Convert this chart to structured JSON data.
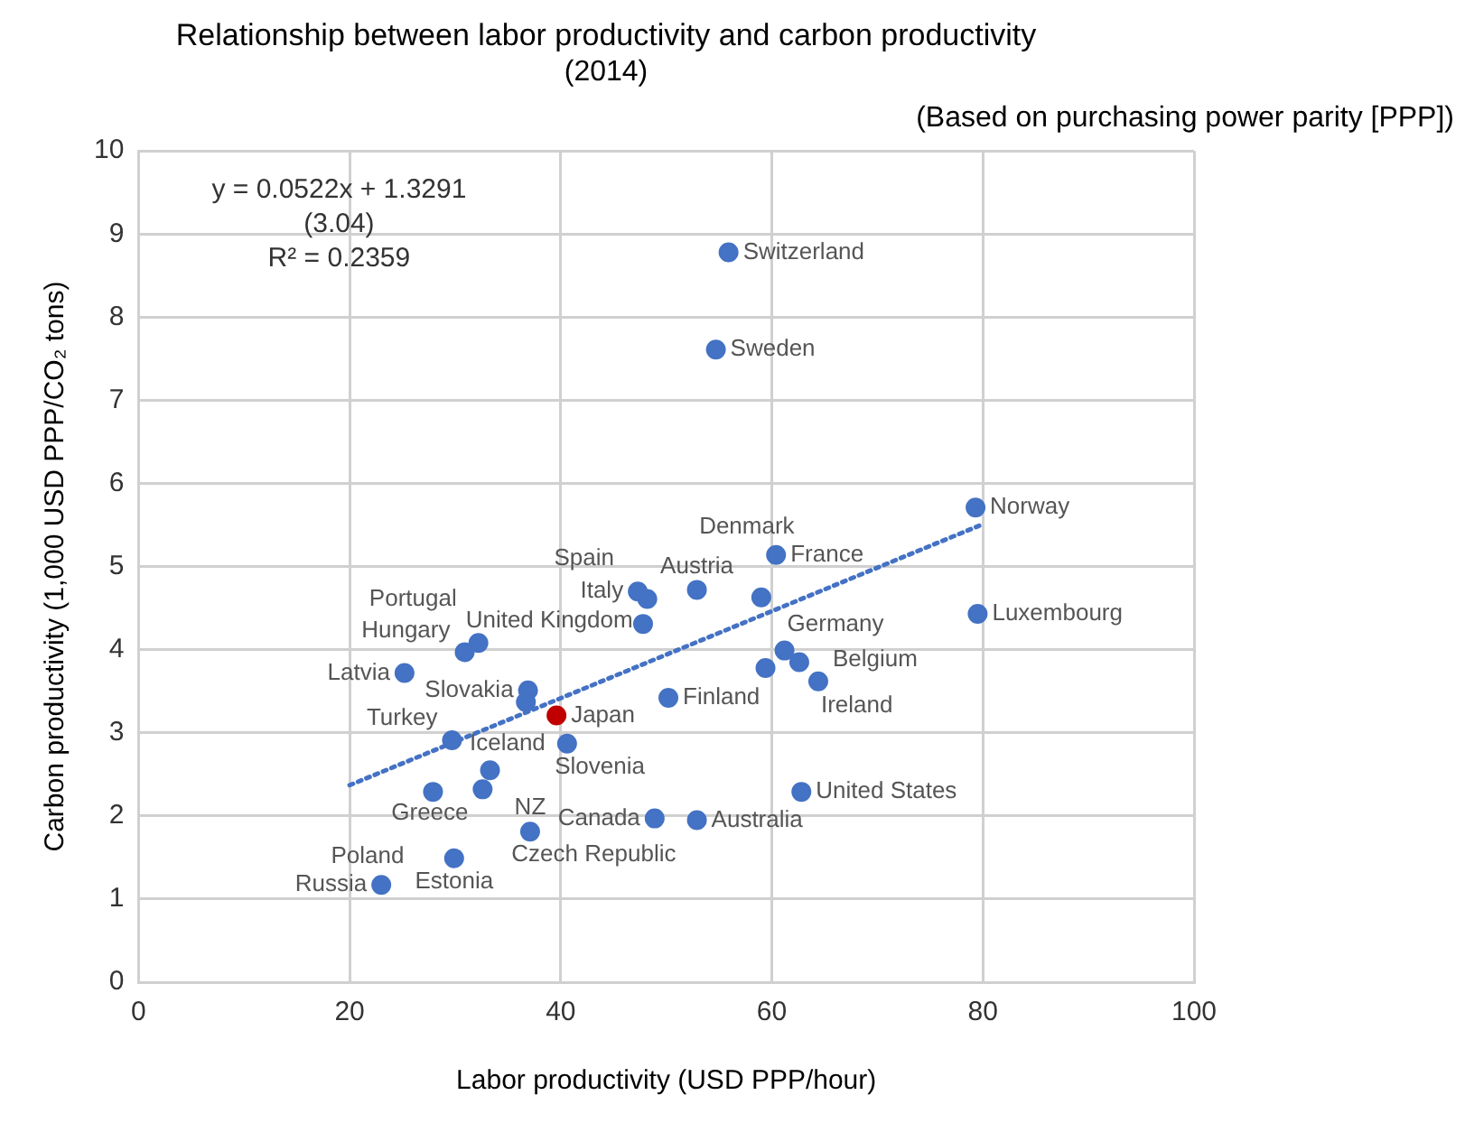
{
  "chart_data": {
    "type": "scatter",
    "title": "Relationship between labor productivity and carbon productivity",
    "subtitle": "(2014)",
    "xlabel": "Labor productivity (USD PPP/hour)",
    "ylabel": "Carbon productivity (1,000 USD PPP/CO₂ tons)",
    "xlim": [
      0,
      100
    ],
    "xticks": [
      0,
      20,
      40,
      60,
      80,
      100
    ],
    "ylim": [
      0,
      10
    ],
    "yticks": [
      0,
      1,
      2,
      3,
      4,
      5,
      6,
      7,
      8,
      9,
      10
    ],
    "grid": true,
    "legend": false,
    "marker": "circle",
    "series": [
      {
        "x": [
          55.9,
          54.7,
          79.3,
          60.4,
          52.9,
          48.2,
          47.3,
          59.0,
          79.5,
          47.8,
          36.9,
          36.7,
          32.2,
          30.9,
          25.2,
          39.6,
          40.6,
          29.7,
          33.3,
          27.9,
          32.6,
          37.1,
          29.9,
          23.0,
          48.9,
          52.9,
          62.8,
          50.2,
          59.4,
          61.2,
          62.6,
          64.4
        ],
        "values": [
          8.78,
          7.61,
          5.71,
          5.14,
          4.72,
          4.61,
          4.7,
          4.63,
          4.43,
          4.31,
          3.51,
          3.37,
          4.08,
          3.97,
          3.72,
          3.21,
          2.87,
          2.91,
          2.55,
          2.29,
          2.32,
          1.81,
          1.49,
          1.17,
          1.97,
          1.95,
          2.29,
          3.42,
          3.78,
          3.99,
          3.85,
          3.62
        ],
        "colors": [
          "#4472c4",
          "#4472c4",
          "#4472c4",
          "#4472c4",
          "#4472c4",
          "#4472c4",
          "#4472c4",
          "#4472c4",
          "#4472c4",
          "#4472c4",
          "#4472c4",
          "#4472c4",
          "#4472c4",
          "#4472c4",
          "#4472c4",
          "#c00000",
          "#4472c4",
          "#4472c4",
          "#4472c4",
          "#4472c4",
          "#4472c4",
          "#4472c4",
          "#4472c4",
          "#4472c4",
          "#4472c4",
          "#4472c4",
          "#4472c4",
          "#4472c4",
          "#4472c4",
          "#4472c4",
          "#4472c4",
          "#4472c4"
        ]
      },
      {
        "type": "line",
        "x": [
          20,
          80
        ],
        "values": [
          2.37,
          5.51
        ],
        "color": "#4472c4",
        "line_style": "dotted",
        "marker": "none"
      }
    ],
    "annotations": [
      "(Based on purchasing power parity [PPP])",
      "y = 0.0522x + 1.3291",
      "(3.04)",
      "R² = 0.2359",
      {
        "text": "Switzerland",
        "x": 55.9,
        "y": 8.78
      },
      {
        "text": "Sweden",
        "x": 54.7,
        "y": 7.61
      },
      {
        "text": "Norway",
        "x": 79.3,
        "y": 5.71
      },
      {
        "text": "France",
        "x": 60.4,
        "y": 5.14
      },
      {
        "text": "Austria",
        "x": 52.9,
        "y": 4.72
      },
      {
        "text": "United Kingdom",
        "x": 48.2,
        "y": 4.61
      },
      {
        "text": "Italy",
        "x": 47.3,
        "y": 4.7
      },
      {
        "text": "Denmark",
        "x": 59.0,
        "y": 4.63
      },
      {
        "text": "Luxembourg",
        "x": 79.5,
        "y": 4.43
      },
      {
        "text": "Spain",
        "x": 47.8,
        "y": 4.31
      },
      {
        "text": "Slovakia",
        "x": 36.9,
        "y": 3.51
      },
      {
        "text": "Slovenia",
        "x": 36.7,
        "y": 3.37
      },
      {
        "text": "Portugal",
        "x": 32.2,
        "y": 4.08
      },
      {
        "text": "Hungary",
        "x": 30.9,
        "y": 3.97
      },
      {
        "text": "Latvia",
        "x": 25.2,
        "y": 3.72
      },
      {
        "text": "Japan",
        "x": 39.6,
        "y": 3.21
      },
      {
        "text": "Iceland",
        "x": 40.6,
        "y": 2.87
      },
      {
        "text": "Turkey",
        "x": 29.7,
        "y": 2.91
      },
      {
        "text": "Greece",
        "x": 33.3,
        "y": 2.55
      },
      {
        "text": "Poland",
        "x": 27.9,
        "y": 2.29
      },
      {
        "text": "Czech Republic",
        "x": 32.6,
        "y": 2.32
      },
      {
        "text": "NZ",
        "x": 37.1,
        "y": 1.81
      },
      {
        "text": "Estonia",
        "x": 29.9,
        "y": 1.49
      },
      {
        "text": "Russia",
        "x": 23.0,
        "y": 1.17
      },
      {
        "text": "Canada",
        "x": 48.9,
        "y": 1.97
      },
      {
        "text": "Australia",
        "x": 52.9,
        "y": 1.95
      },
      {
        "text": "United States",
        "x": 62.8,
        "y": 2.29
      },
      {
        "text": "Finland",
        "x": 50.2,
        "y": 3.42
      },
      {
        "text": "Germany",
        "x": 59.4,
        "y": 3.78
      },
      {
        "text": "Ireland",
        "x": 62.6,
        "y": 3.85
      },
      {
        "text": "Belgium",
        "x": 64.4,
        "y": 3.62
      }
    ]
  }
}
